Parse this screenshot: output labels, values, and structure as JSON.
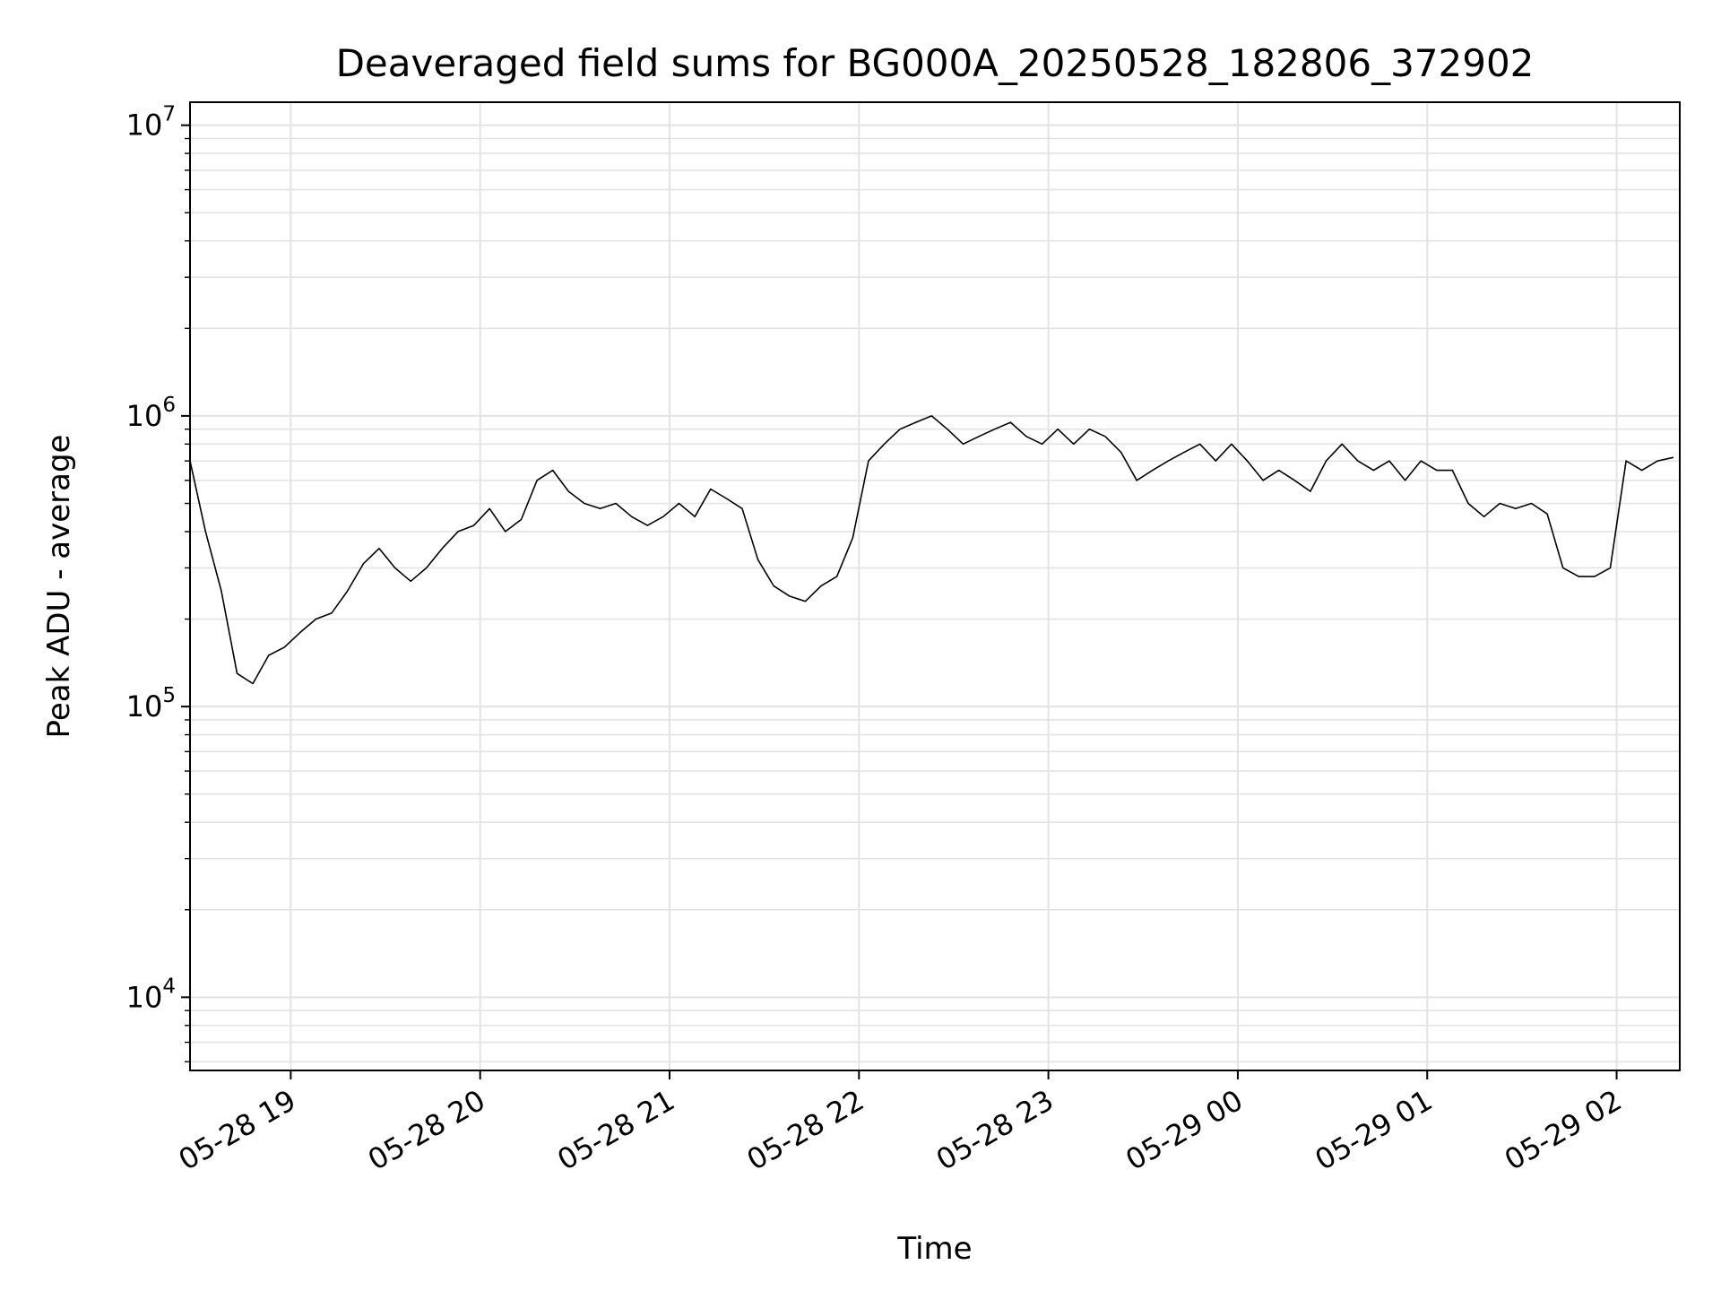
{
  "chart_data": {
    "type": "line",
    "title": "Deaveraged field sums for BG000A_20250528_182806_372902",
    "xlabel": "Time",
    "ylabel": "Peak ADU - average",
    "x_type": "datetime",
    "xlim": [
      "2025-05-28T18:28:06",
      "2025-05-29T02:20:00"
    ],
    "x_ticks": [
      "2025-05-28T19:00",
      "2025-05-28T20:00",
      "2025-05-28T21:00",
      "2025-05-28T22:00",
      "2025-05-28T23:00",
      "2025-05-29T00:00",
      "2025-05-29T01:00",
      "2025-05-29T02:00"
    ],
    "x_tick_labels": [
      "05-28 19",
      "05-28 20",
      "05-28 21",
      "05-28 22",
      "05-28 23",
      "05-29 00",
      "05-29 01",
      "05-29 02"
    ],
    "yscale": "log",
    "ylim": [
      5600,
      12000000
    ],
    "y_major_ticks": [
      10000,
      100000,
      1000000,
      10000000
    ],
    "y_tick_labels": [
      {
        "base": "10",
        "exp": "4"
      },
      {
        "base": "10",
        "exp": "5"
      },
      {
        "base": "10",
        "exp": "6"
      },
      {
        "base": "10",
        "exp": "7"
      }
    ],
    "grid": true,
    "line_color": "#000000",
    "series": [
      {
        "x": [
          "2025-05-28T18:28:06",
          "2025-05-28T18:33:00",
          "2025-05-28T18:38:00",
          "2025-05-28T18:43:00",
          "2025-05-28T18:48:00",
          "2025-05-28T18:53:00",
          "2025-05-28T18:58:00",
          "2025-05-28T19:03:00",
          "2025-05-28T19:08:00",
          "2025-05-28T19:13:00",
          "2025-05-28T19:18:00",
          "2025-05-28T19:23:00",
          "2025-05-28T19:28:00",
          "2025-05-28T19:33:00",
          "2025-05-28T19:38:00",
          "2025-05-28T19:43:00",
          "2025-05-28T19:48:00",
          "2025-05-28T19:53:00",
          "2025-05-28T19:58:00",
          "2025-05-28T20:03:00",
          "2025-05-28T20:08:00",
          "2025-05-28T20:13:00",
          "2025-05-28T20:18:00",
          "2025-05-28T20:23:00",
          "2025-05-28T20:28:00",
          "2025-05-28T20:33:00",
          "2025-05-28T20:38:00",
          "2025-05-28T20:43:00",
          "2025-05-28T20:48:00",
          "2025-05-28T20:53:00",
          "2025-05-28T20:58:00",
          "2025-05-28T21:03:00",
          "2025-05-28T21:08:00",
          "2025-05-28T21:13:00",
          "2025-05-28T21:18:00",
          "2025-05-28T21:23:00",
          "2025-05-28T21:28:00",
          "2025-05-28T21:33:00",
          "2025-05-28T21:38:00",
          "2025-05-28T21:43:00",
          "2025-05-28T21:48:00",
          "2025-05-28T21:53:00",
          "2025-05-28T21:58:00",
          "2025-05-28T22:03:00",
          "2025-05-28T22:08:00",
          "2025-05-28T22:13:00",
          "2025-05-28T22:18:00",
          "2025-05-28T22:23:00",
          "2025-05-28T22:28:00",
          "2025-05-28T22:33:00",
          "2025-05-28T22:38:00",
          "2025-05-28T22:43:00",
          "2025-05-28T22:48:00",
          "2025-05-28T22:53:00",
          "2025-05-28T22:58:00",
          "2025-05-28T23:03:00",
          "2025-05-28T23:08:00",
          "2025-05-28T23:13:00",
          "2025-05-28T23:18:00",
          "2025-05-28T23:23:00",
          "2025-05-28T23:28:00",
          "2025-05-28T23:33:00",
          "2025-05-28T23:38:00",
          "2025-05-28T23:43:00",
          "2025-05-28T23:48:00",
          "2025-05-28T23:53:00",
          "2025-05-28T23:58:00",
          "2025-05-29T00:03:00",
          "2025-05-29T00:08:00",
          "2025-05-29T00:13:00",
          "2025-05-29T00:18:00",
          "2025-05-29T00:23:00",
          "2025-05-29T00:28:00",
          "2025-05-29T00:33:00",
          "2025-05-29T00:38:00",
          "2025-05-29T00:43:00",
          "2025-05-29T00:48:00",
          "2025-05-29T00:53:00",
          "2025-05-29T00:58:00",
          "2025-05-29T01:03:00",
          "2025-05-29T01:08:00",
          "2025-05-29T01:13:00",
          "2025-05-29T01:18:00",
          "2025-05-29T01:23:00",
          "2025-05-29T01:28:00",
          "2025-05-29T01:33:00",
          "2025-05-29T01:38:00",
          "2025-05-29T01:43:00",
          "2025-05-29T01:48:00",
          "2025-05-29T01:53:00",
          "2025-05-29T01:58:00",
          "2025-05-29T02:03:00",
          "2025-05-29T02:08:00",
          "2025-05-29T02:13:00",
          "2025-05-29T02:18:00"
        ],
        "y": [
          700000,
          400000,
          250000,
          130000,
          120000,
          150000,
          160000,
          180000,
          200000,
          210000,
          250000,
          310000,
          350000,
          300000,
          270000,
          300000,
          350000,
          400000,
          420000,
          480000,
          400000,
          440000,
          600000,
          650000,
          550000,
          500000,
          480000,
          500000,
          450000,
          420000,
          450000,
          500000,
          450000,
          560000,
          520000,
          480000,
          320000,
          260000,
          240000,
          230000,
          260000,
          280000,
          380000,
          700000,
          800000,
          900000,
          950000,
          1000000,
          900000,
          800000,
          850000,
          900000,
          950000,
          850000,
          800000,
          900000,
          800000,
          900000,
          850000,
          750000,
          600000,
          650000,
          700000,
          750000,
          800000,
          700000,
          800000,
          700000,
          600000,
          650000,
          600000,
          550000,
          700000,
          800000,
          700000,
          650000,
          700000,
          600000,
          700000,
          650000,
          650000,
          500000,
          450000,
          500000,
          480000,
          500000,
          460000,
          300000,
          280000,
          280000,
          300000,
          700000,
          650000,
          700000,
          720000
        ]
      }
    ]
  }
}
